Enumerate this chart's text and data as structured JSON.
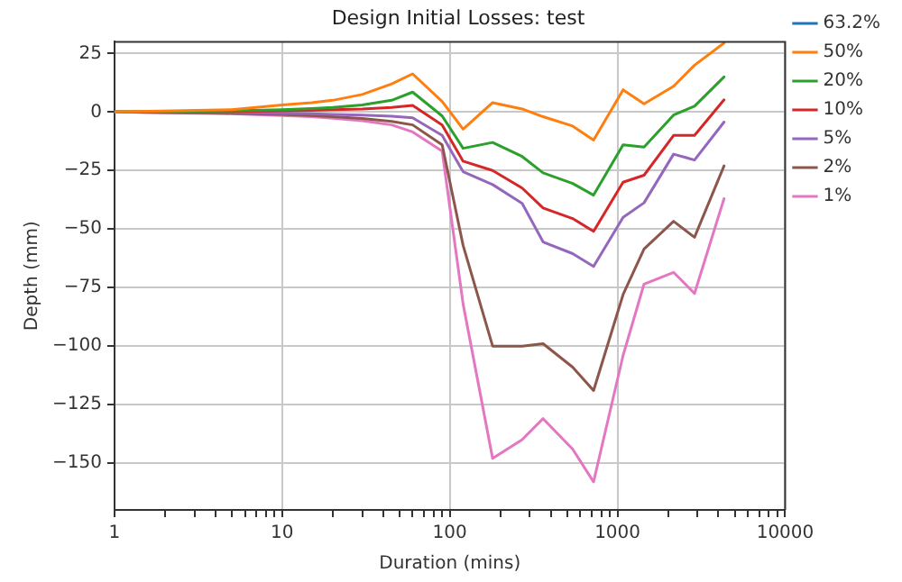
{
  "chart_data": {
    "type": "line",
    "title": "Design Initial Losses: test",
    "xlabel": "Duration (mins)",
    "ylabel": "Depth (mm)",
    "x": [
      1,
      5,
      10,
      15,
      20,
      30,
      45,
      60,
      90,
      120,
      180,
      270,
      360,
      540,
      720,
      1080,
      1440,
      2160,
      2880,
      4320
    ],
    "series": [
      {
        "name": "63.2%",
        "color": "#1f77b4",
        "values": [
          null,
          null,
          null,
          null,
          null,
          null,
          null,
          null,
          null,
          null,
          null,
          null,
          null,
          null,
          null,
          null,
          null,
          null,
          null,
          null
        ]
      },
      {
        "name": "50%",
        "color": "#ff7f0e",
        "values": [
          0,
          1,
          3,
          4,
          5,
          7.5,
          12,
          16.3,
          4.5,
          -7.3,
          4,
          1.3,
          -2,
          -6,
          -12,
          9.5,
          3.5,
          11,
          20,
          29.5
        ]
      },
      {
        "name": "20%",
        "color": "#2ca02c",
        "values": [
          0,
          0.5,
          1,
          1.5,
          2,
          3,
          5,
          8.5,
          -1.7,
          -15.5,
          -13,
          -19,
          -26,
          -30.5,
          -35.5,
          -14,
          -15,
          -1.3,
          2.5,
          15
        ]
      },
      {
        "name": "10%",
        "color": "#d62728",
        "values": [
          0,
          0.2,
          0.5,
          0.7,
          1,
          1.3,
          2,
          2.8,
          -5.5,
          -21,
          -25,
          -32.5,
          -41,
          -45.5,
          -51,
          -30,
          -27,
          -10,
          -10,
          5.2
        ]
      },
      {
        "name": "5%",
        "color": "#9467bd",
        "values": [
          0,
          -0.2,
          -0.5,
          -0.7,
          -1,
          -1.3,
          -1.8,
          -2.5,
          -10,
          -25.5,
          -31,
          -39,
          -55.5,
          -60.5,
          -66,
          -45,
          -38.8,
          -18,
          -20.5,
          -4.3
        ]
      },
      {
        "name": "2%",
        "color": "#8c564b",
        "values": [
          0,
          -0.5,
          -1,
          -1.5,
          -2,
          -2.8,
          -4,
          -5.5,
          -14,
          -57,
          -100,
          -100,
          -99,
          -109,
          -119,
          -78,
          -58.5,
          -46.7,
          -53.5,
          -23
        ]
      },
      {
        "name": "1%",
        "color": "#e377c2",
        "values": [
          0,
          -0.7,
          -1.5,
          -2,
          -2.7,
          -3.7,
          -5.5,
          -8.5,
          -16.7,
          -82,
          -148,
          -140,
          -131,
          -144,
          -158,
          -104,
          -73.5,
          -68.5,
          -77.5,
          -37
        ]
      }
    ],
    "log": "x",
    "xlim": [
      1,
      10000
    ],
    "xticks": [
      1,
      {
        "value": 2,
        "label": null
      },
      {
        "value": 3,
        "label": null
      },
      {
        "value": 4,
        "label": null
      },
      {
        "value": 5,
        "label": null
      },
      {
        "value": 6,
        "label": null
      },
      {
        "value": 7,
        "label": null
      },
      {
        "value": 8,
        "label": null
      },
      {
        "value": 9,
        "label": null
      },
      10,
      {
        "value": 20,
        "label": null
      },
      {
        "value": 30,
        "label": null
      },
      {
        "value": 40,
        "label": null
      },
      {
        "value": 50,
        "label": null
      },
      {
        "value": 60,
        "label": null
      },
      {
        "value": 70,
        "label": null
      },
      {
        "value": 80,
        "label": null
      },
      {
        "value": 90,
        "label": null
      },
      100,
      {
        "value": 200,
        "label": null
      },
      {
        "value": 300,
        "label": null
      },
      {
        "value": 400,
        "label": null
      },
      {
        "value": 500,
        "label": null
      },
      {
        "value": 600,
        "label": null
      },
      {
        "value": 700,
        "label": null
      },
      {
        "value": 800,
        "label": null
      },
      {
        "value": 900,
        "label": null
      },
      1000,
      {
        "value": 2000,
        "label": null
      },
      {
        "value": 3000,
        "label": null
      },
      {
        "value": 4000,
        "label": null
      },
      {
        "value": 5000,
        "label": null
      },
      {
        "value": 6000,
        "label": null
      },
      {
        "value": 7000,
        "label": null
      },
      {
        "value": 8000,
        "label": null
      },
      {
        "value": 9000,
        "label": null
      },
      10000
    ],
    "ylim": [
      -170,
      30
    ],
    "yticks": [
      -150,
      -125,
      -100,
      -75,
      -50,
      -25,
      0,
      25
    ],
    "grid": true,
    "legend": "right",
    "marker": "none",
    "line_style": "solid"
  }
}
